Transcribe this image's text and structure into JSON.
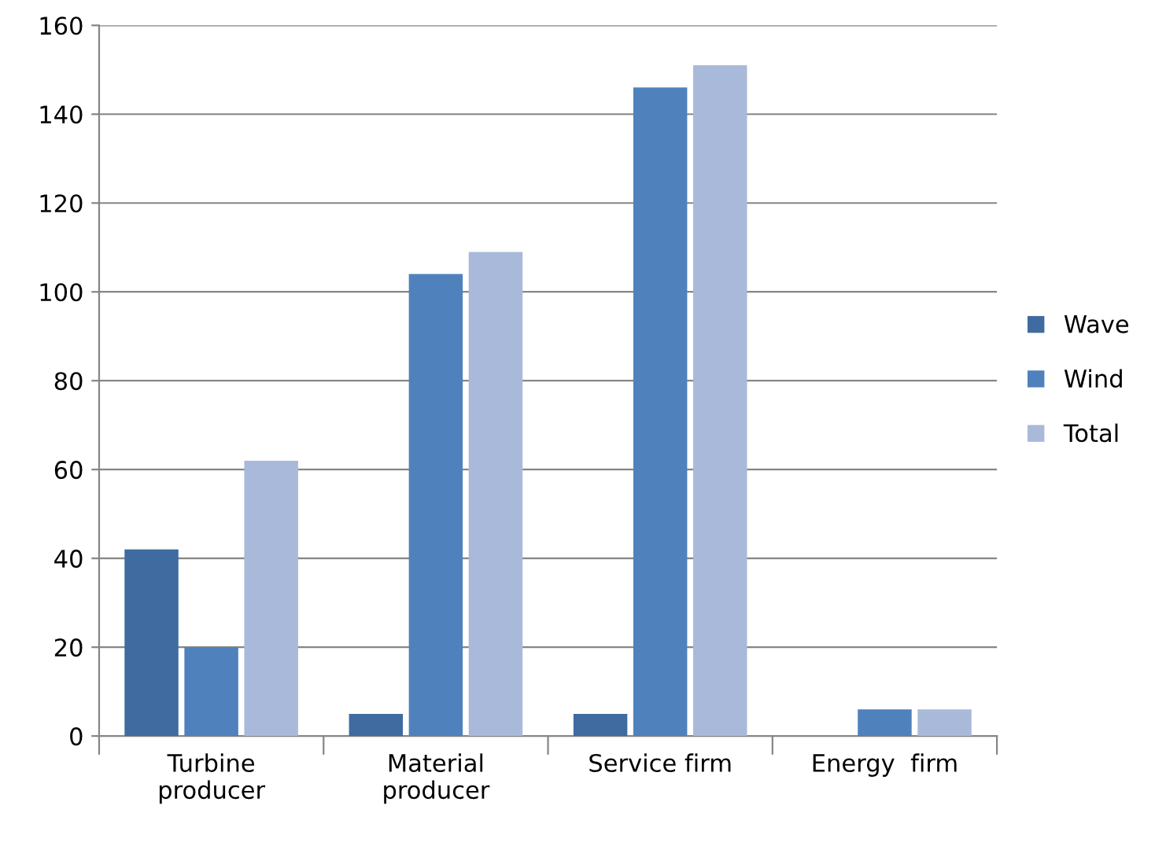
{
  "chart_data": {
    "type": "bar",
    "categories": [
      "Turbine\nproducer",
      "Material\nproducer",
      "Service firm",
      "Energy  firm"
    ],
    "series": [
      {
        "name": "Wave",
        "color": "#3f6ba0",
        "values": [
          42,
          5,
          5,
          0
        ]
      },
      {
        "name": "Wind",
        "color": "#4f81bd",
        "values": [
          20,
          104,
          146,
          6
        ]
      },
      {
        "name": "Total",
        "color": "#a9b9d9",
        "values": [
          62,
          109,
          151,
          6
        ]
      }
    ],
    "ylim": [
      0,
      160
    ],
    "yticks": [
      0,
      20,
      40,
      60,
      80,
      100,
      120,
      140,
      160
    ],
    "grid": "y",
    "legend": "right"
  }
}
